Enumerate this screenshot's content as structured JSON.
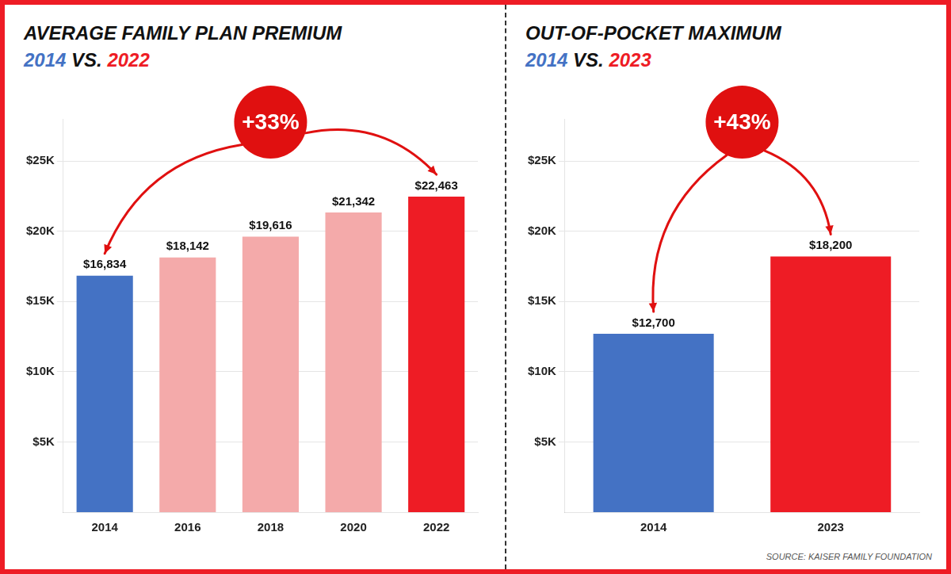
{
  "chart_data": [
    {
      "type": "bar",
      "title": "AVERAGE FAMILY PLAN PREMIUM",
      "subtitle": "2014 VS. 2022",
      "categories": [
        "2014",
        "2016",
        "2018",
        "2020",
        "2022"
      ],
      "values": [
        16834,
        18142,
        19616,
        21342,
        22463
      ],
      "colors": [
        "#4472C4",
        "#F4AAAA",
        "#F4AAAA",
        "#F4AAAA",
        "#EE1C25"
      ],
      "value_labels": [
        "$16,834",
        "$18,142",
        "$19,616",
        "$21,342",
        "$22,463"
      ],
      "data_labels": true,
      "ylim": [
        0,
        28000
      ],
      "yticks": [
        {
          "value": 5000,
          "label": "$5K"
        },
        {
          "value": 10000,
          "label": "$10K"
        },
        {
          "value": 15000,
          "label": "$15K"
        },
        {
          "value": 20000,
          "label": "$20K"
        },
        {
          "value": 25000,
          "label": "$25K"
        }
      ],
      "grid": true,
      "annotations": [
        {
          "text": "+33%",
          "color": "#E01010"
        }
      ]
    },
    {
      "type": "bar",
      "title": "OUT-OF-POCKET MAXIMUM",
      "subtitle": "2014 VS. 2023",
      "categories": [
        "2014",
        "2023"
      ],
      "values": [
        12700,
        18200
      ],
      "colors": [
        "#4472C4",
        "#EE1C25"
      ],
      "value_labels": [
        "$12,700",
        "$18,200"
      ],
      "data_labels": true,
      "ylim": [
        0,
        28000
      ],
      "yticks": [
        {
          "value": 5000,
          "label": "$5K"
        },
        {
          "value": 10000,
          "label": "$10K"
        },
        {
          "value": 15000,
          "label": "$15K"
        },
        {
          "value": 20000,
          "label": "$20K"
        },
        {
          "value": 25000,
          "label": "$25K"
        }
      ],
      "grid": true,
      "annotations": [
        {
          "text": "+43%",
          "color": "#E01010"
        },
        {
          "text": "SOURCE: KAISER FAMILY FOUNDATION"
        }
      ]
    }
  ]
}
